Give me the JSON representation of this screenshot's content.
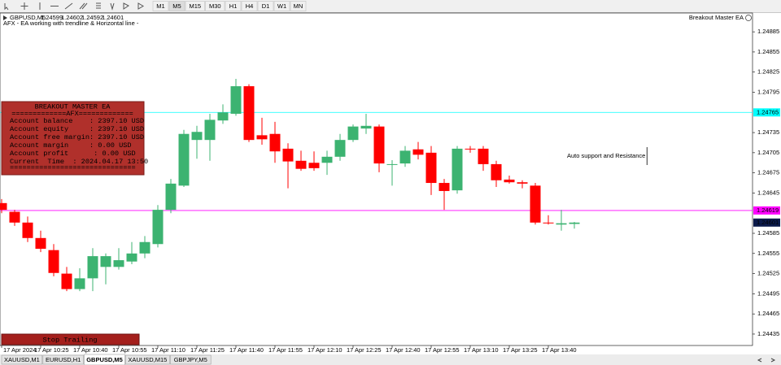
{
  "toolbar": {
    "timeframes": [
      "M1",
      "M5",
      "M15",
      "M30",
      "H1",
      "H4",
      "D1",
      "W1",
      "MN"
    ]
  },
  "header": {
    "symbol": "GBPUSD,M5",
    "subtitle": "AFX - EA working with trendline & Horizontal line -",
    "ea_name": "Breakout Master EA"
  },
  "chart_data": {
    "type": "candlestick",
    "categories": [
      "17 Apr 2024",
      null,
      null,
      "17 Apr 10:25",
      null,
      null,
      "17 Apr 10:40",
      null,
      null,
      "17 Apr 10:55",
      null,
      null,
      "17 Apr 11:10",
      null,
      null,
      "17 Apr 11:25",
      null,
      null,
      "17 Apr 11:40",
      null,
      null,
      "17 Apr 11:55",
      null,
      null,
      "17 Apr 12:10",
      null,
      null,
      "17 Apr 12:25",
      null,
      null,
      "17 Apr 12:40",
      null,
      null,
      "17 Apr 12:55",
      null,
      null,
      "17 Apr 13:10",
      null,
      null,
      "17 Apr 13:25",
      null,
      null,
      "17 Apr 13:40",
      null,
      null
    ],
    "open": [
      1.2463,
      1.24617,
      1.24601,
      1.24578,
      1.2456,
      1.24525,
      1.24502,
      1.24518,
      1.24535,
      1.24535,
      1.24543,
      1.24555,
      1.24569,
      1.2462,
      1.24656,
      1.24724,
      1.24724,
      1.24753,
      1.24763,
      1.24804,
      1.24731,
      1.24733,
      1.24711,
      1.24693,
      1.2469,
      1.2469,
      1.24699,
      1.24724,
      1.24741,
      1.24744,
      1.24688,
      1.24689,
      1.2471,
      1.24705,
      1.2466,
      1.24649,
      1.24711,
      1.24711,
      1.24688,
      1.24665,
      1.24661,
      1.24656,
      1.24601,
      1.24598,
      1.24599
    ],
    "high": [
      1.24636,
      1.2462,
      1.2461,
      1.24589,
      1.24569,
      1.24535,
      1.24533,
      1.24563,
      1.24555,
      1.24563,
      1.24572,
      1.24581,
      1.24627,
      1.24666,
      1.24739,
      1.24745,
      1.24763,
      1.24777,
      1.24815,
      1.24807,
      1.24757,
      1.24751,
      1.24719,
      1.24708,
      1.24707,
      1.24708,
      1.24733,
      1.24747,
      1.24763,
      1.24747,
      1.24694,
      1.24715,
      1.24721,
      1.24715,
      1.24666,
      1.24715,
      1.24715,
      1.24715,
      1.24693,
      1.24671,
      1.24664,
      1.2466,
      1.24612,
      1.2462,
      1.24602
    ],
    "low": [
      1.24615,
      1.24596,
      1.24572,
      1.24557,
      1.24521,
      1.24499,
      1.24499,
      1.24499,
      1.24509,
      1.24531,
      1.24539,
      1.24548,
      1.24564,
      1.24615,
      1.24654,
      1.24696,
      1.24693,
      1.24748,
      1.2476,
      1.24721,
      1.24717,
      1.2469,
      1.24652,
      1.24678,
      1.24678,
      1.24672,
      1.24693,
      1.24721,
      1.24733,
      1.24676,
      1.24656,
      1.24684,
      1.24695,
      1.24642,
      1.2462,
      1.24644,
      1.24705,
      1.24678,
      1.24654,
      1.24659,
      1.24652,
      1.24598,
      1.24598,
      1.24589,
      1.24592
    ],
    "close": [
      1.2462,
      1.24601,
      1.24578,
      1.24562,
      1.24526,
      1.24502,
      1.24518,
      1.24551,
      1.24551,
      1.24545,
      1.24555,
      1.24572,
      1.2462,
      1.24659,
      1.24733,
      1.24736,
      1.24754,
      1.24765,
      1.24804,
      1.24724,
      1.24725,
      1.24707,
      1.24692,
      1.24681,
      1.24682,
      1.24699,
      1.24724,
      1.24744,
      1.24745,
      1.24689,
      1.24688,
      1.24708,
      1.24702,
      1.2466,
      1.24648,
      1.24711,
      1.2471,
      1.24688,
      1.24664,
      1.24661,
      1.24659,
      1.24601,
      1.246,
      1.246,
      1.24601
    ],
    "up_color": "#3cb371",
    "down_color": "#ff0000",
    "ylim": [
      1.24418,
      1.24913
    ],
    "yticks": [
      1.24435,
      1.24465,
      1.24495,
      1.24525,
      1.24555,
      1.24585,
      1.24645,
      1.24675,
      1.24705,
      1.24735,
      1.24795,
      1.24825,
      1.24855,
      1.24885
    ],
    "levels": [
      {
        "value": 1.24765,
        "color": "#00ffff"
      },
      {
        "value": 1.24619,
        "color": "#ff00ff"
      }
    ],
    "annotation": "Auto support and Resistance"
  },
  "panel": {
    "title": "BREAKOUT MASTER EA",
    "divider_top": "=============AFX=============",
    "lines": [
      "Account balance    : 2397.10 USD",
      "Account equity     : 2397.10 USD",
      "Account free margin: 2397.10 USD",
      "Account margin     : 0.00 USD",
      "Account profit      : 0.00 USD",
      "Current  Time  : 2024.04.17 13:50"
    ],
    "divider_bottom": "==============================",
    "button": "Stop Trailing"
  },
  "tabs": {
    "items": [
      "XAUUSD,M1",
      "EURUSD,H1",
      "GBPUSD,M5",
      "XAUUSD,M15",
      "GBPJPY,M5"
    ],
    "active": 2
  }
}
